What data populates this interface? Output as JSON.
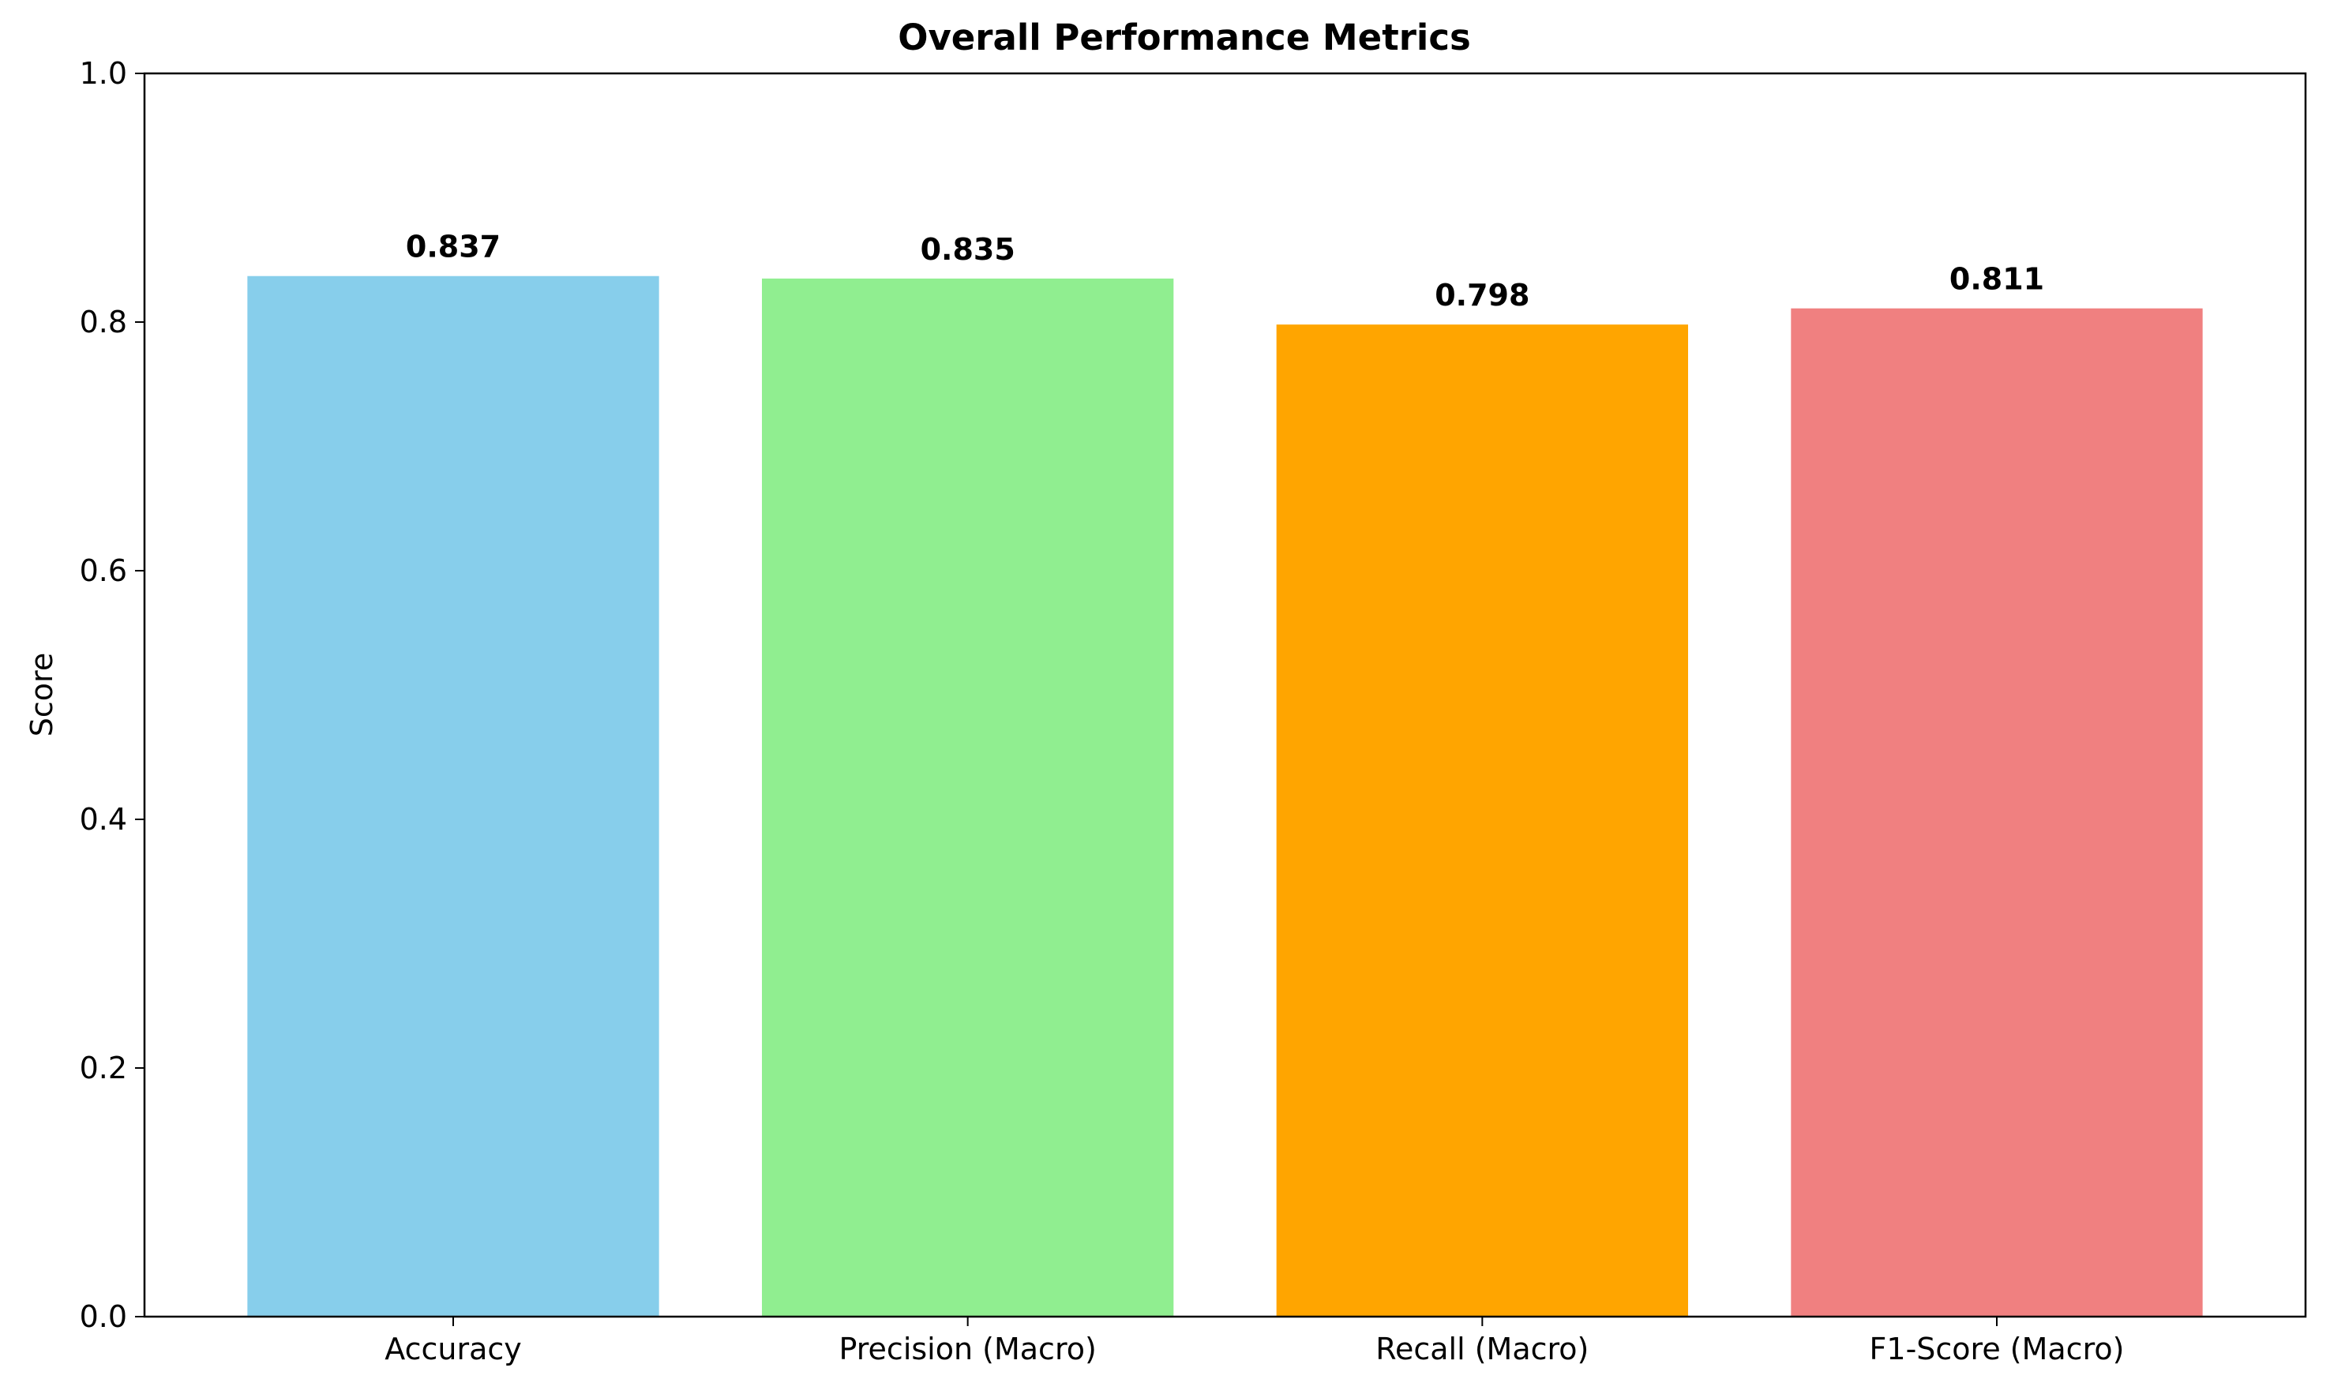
{
  "chart_data": {
    "type": "bar",
    "title": "Overall Performance Metrics",
    "xlabel": "",
    "ylabel": "Score",
    "categories": [
      "Accuracy",
      "Precision (Macro)",
      "Recall (Macro)",
      "F1-Score (Macro)"
    ],
    "values": [
      0.837,
      0.835,
      0.798,
      0.811
    ],
    "data_labels": [
      "0.837",
      "0.835",
      "0.798",
      "0.811"
    ],
    "colors": [
      "#87ceeb",
      "#90ee90",
      "#ffa500",
      "#f08080"
    ],
    "ylim": [
      0,
      1.0
    ],
    "yticks": [
      0.0,
      0.2,
      0.4,
      0.6,
      0.8,
      1.0
    ],
    "ytick_labels": [
      "0.0",
      "0.2",
      "0.4",
      "0.6",
      "0.8",
      "1.0"
    ],
    "grid": false,
    "legend": "none"
  }
}
